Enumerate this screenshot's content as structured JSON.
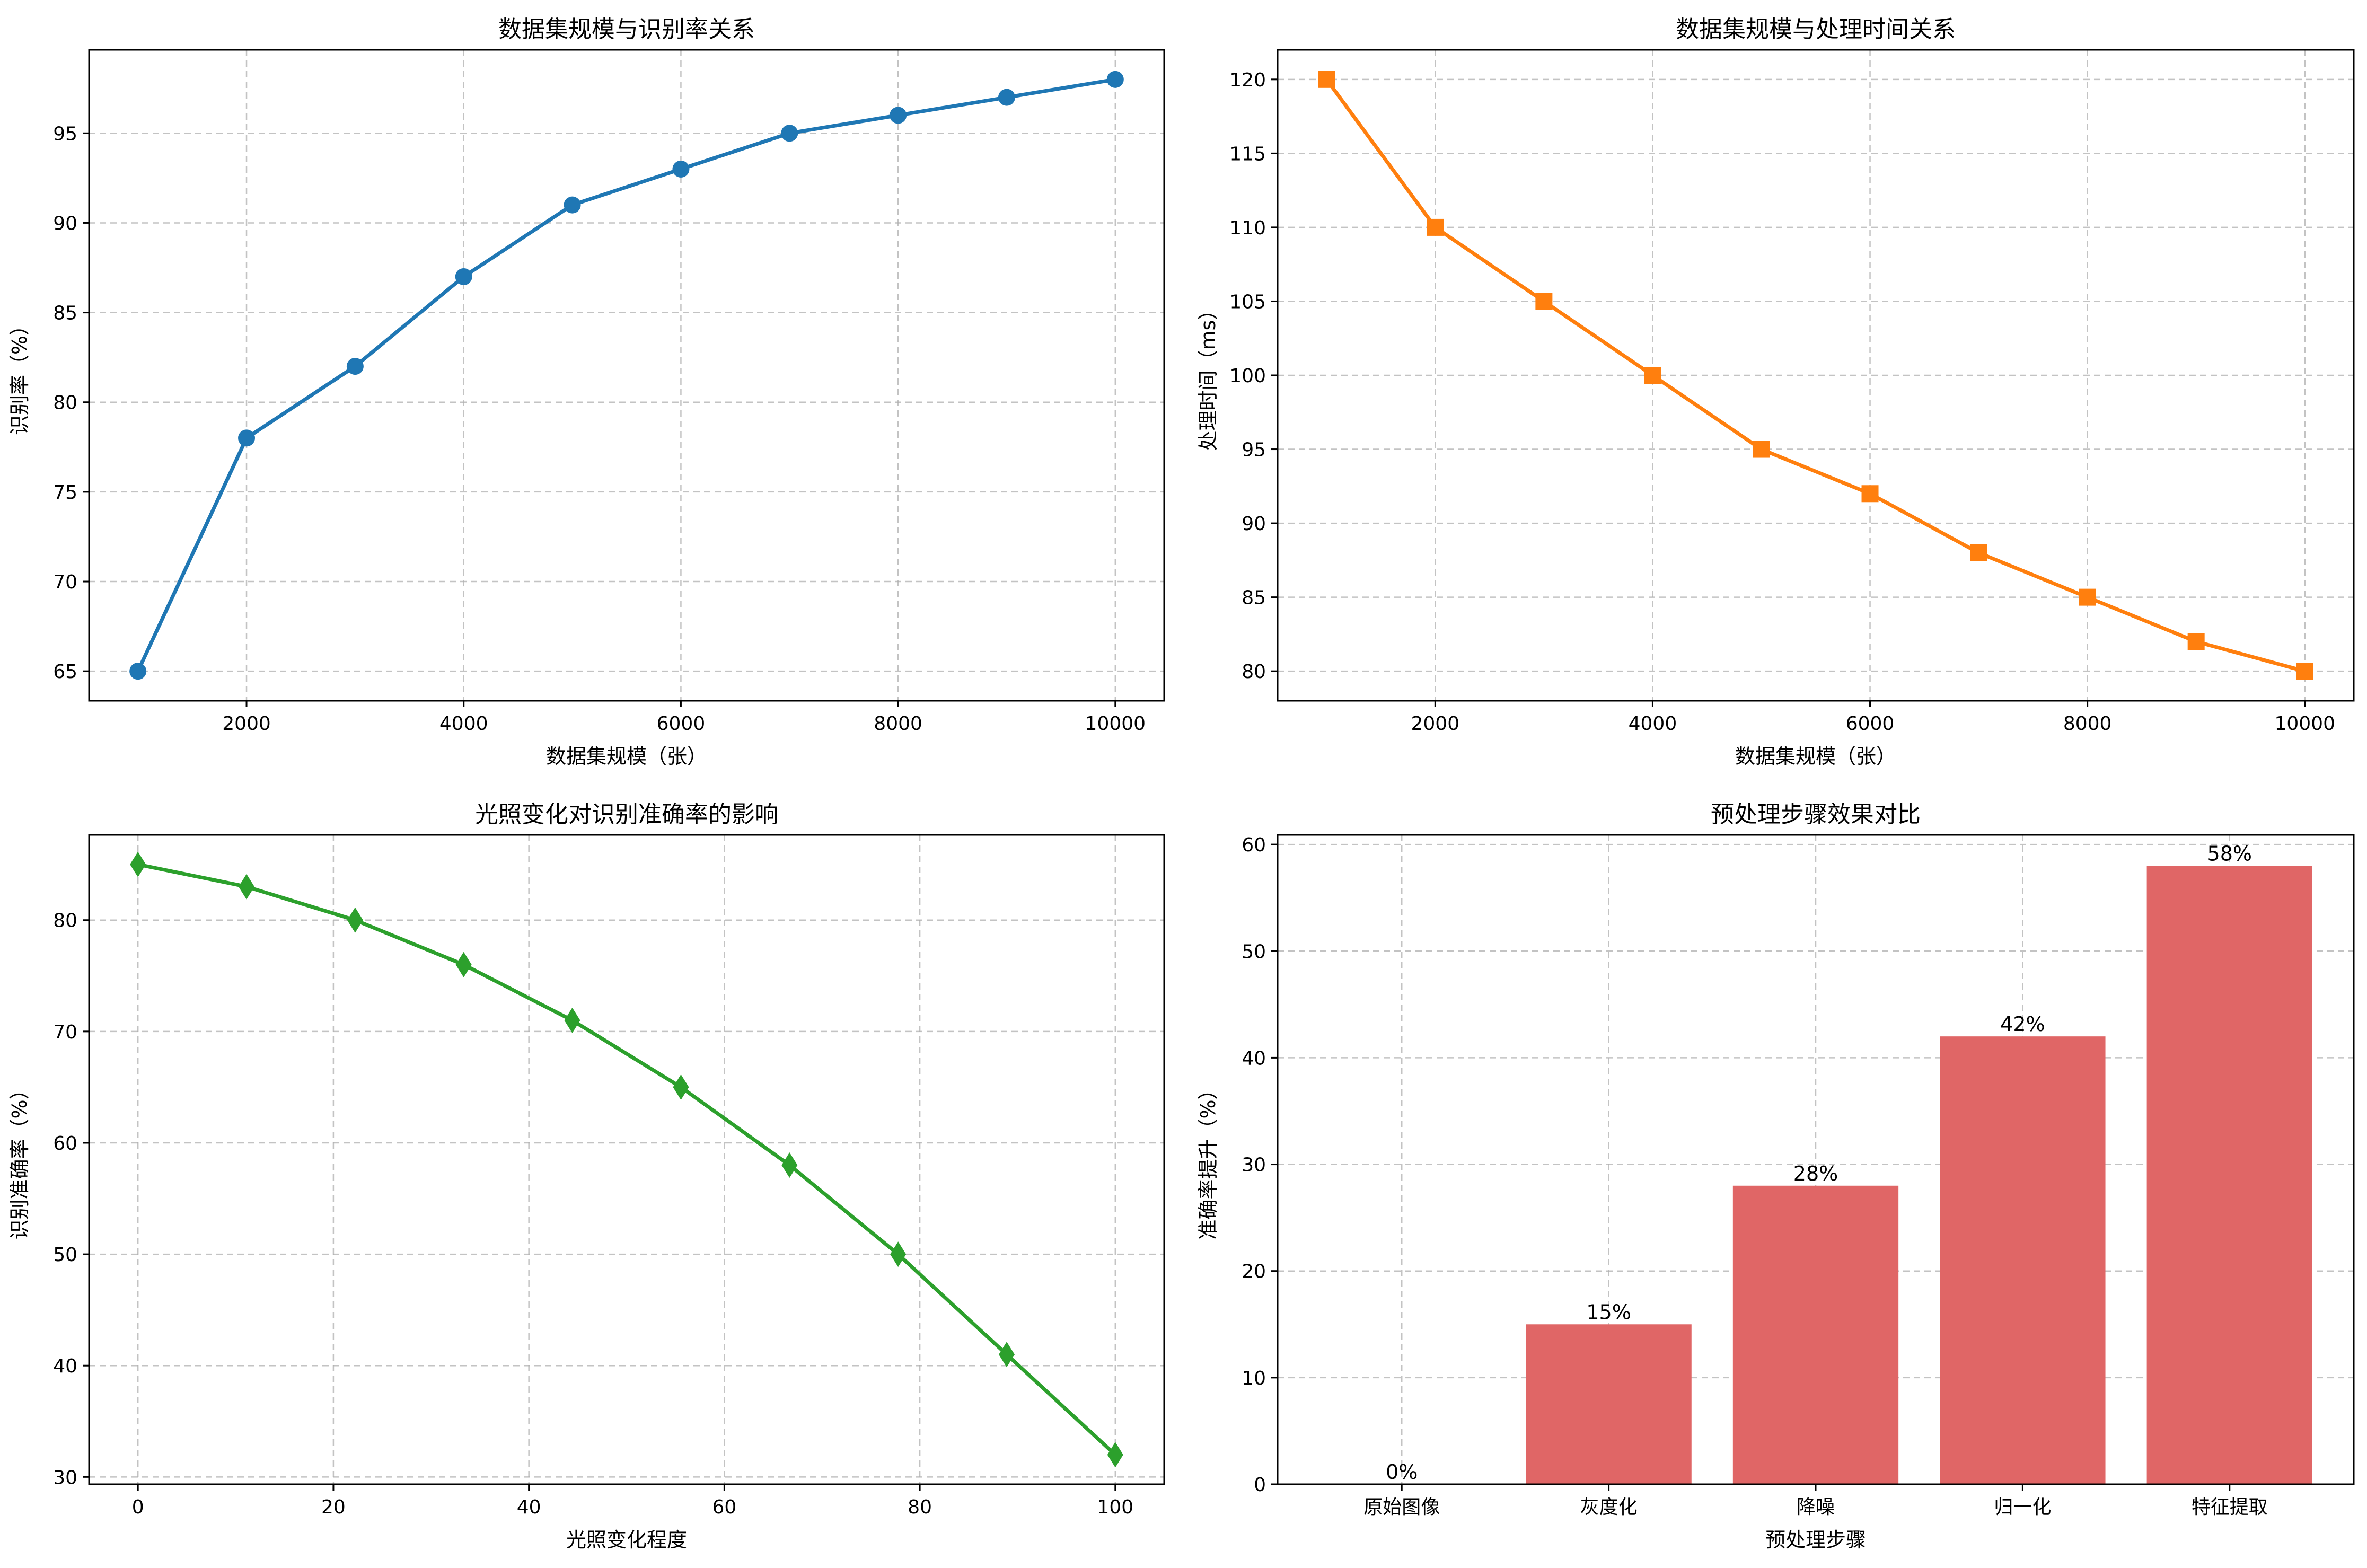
{
  "chart_data": [
    {
      "type": "line",
      "title": "数据集规模与识别率关系",
      "xlabel": "数据集规模（张）",
      "ylabel": "识别率（%）",
      "x": [
        1000,
        2000,
        3000,
        4000,
        5000,
        6000,
        7000,
        8000,
        9000,
        10000
      ],
      "series": [
        {
          "values": [
            65,
            78,
            82,
            87,
            91,
            93,
            95,
            96,
            97,
            98
          ]
        }
      ],
      "xlim": [
        550,
        10450
      ],
      "ylim": [
        63.35,
        99.65
      ],
      "xticks": [
        2000,
        4000,
        6000,
        8000,
        10000
      ],
      "yticks": [
        65,
        70,
        75,
        80,
        85,
        90,
        95
      ],
      "marker": "circle",
      "color": "#1f77b4",
      "grid": true
    },
    {
      "type": "line",
      "title": "数据集规模与处理时间关系",
      "xlabel": "数据集规模（张）",
      "ylabel": "处理时间（ms）",
      "x": [
        1000,
        2000,
        3000,
        4000,
        5000,
        6000,
        7000,
        8000,
        9000,
        10000
      ],
      "series": [
        {
          "values": [
            120,
            110,
            105,
            100,
            95,
            92,
            88,
            85,
            82,
            80
          ]
        }
      ],
      "xlim": [
        550,
        10450
      ],
      "ylim": [
        78,
        122
      ],
      "xticks": [
        2000,
        4000,
        6000,
        8000,
        10000
      ],
      "yticks": [
        80,
        85,
        90,
        95,
        100,
        105,
        110,
        115,
        120
      ],
      "marker": "square",
      "color": "#ff7f0e",
      "grid": true
    },
    {
      "type": "line",
      "title": "光照变化对识别准确率的影响",
      "xlabel": "光照变化程度",
      "ylabel": "识别准确率（%）",
      "x": [
        0,
        11.11,
        22.22,
        33.33,
        44.44,
        55.56,
        66.67,
        77.78,
        88.89,
        100
      ],
      "series": [
        {
          "values": [
            85,
            83,
            80,
            76,
            71,
            65,
            58,
            50,
            41,
            32
          ]
        }
      ],
      "xlim": [
        -5,
        105
      ],
      "ylim": [
        29.35,
        87.65
      ],
      "xticks": [
        0,
        20,
        40,
        60,
        80,
        100
      ],
      "yticks": [
        30,
        40,
        50,
        60,
        70,
        80
      ],
      "marker": "diamond",
      "color": "#2ca02c",
      "grid": true
    },
    {
      "type": "bar",
      "title": "预处理步骤效果对比",
      "xlabel": "预处理步骤",
      "ylabel": "准确率提升（%）",
      "categories": [
        "原始图像",
        "灰度化",
        "降噪",
        "归一化",
        "特征提取"
      ],
      "values": [
        0,
        15,
        28,
        42,
        58
      ],
      "value_labels": [
        "0%",
        "15%",
        "28%",
        "42%",
        "58%"
      ],
      "ylim": [
        0,
        60.9
      ],
      "yticks": [
        0,
        10,
        20,
        30,
        40,
        50,
        60
      ],
      "color": "#e06666",
      "grid": true
    }
  ]
}
